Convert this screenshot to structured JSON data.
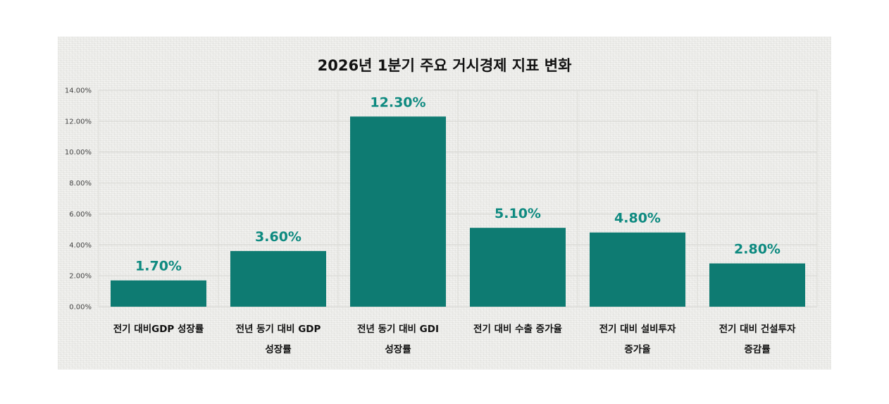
{
  "chart_data": {
    "type": "bar",
    "title": "2026년 1분기 주요 거시경제 지표 변화",
    "categories": [
      [
        "전기 대비GDP 성장률"
      ],
      [
        "전년 동기 대비 GDP",
        "성장률"
      ],
      [
        "전년 동기 대비 GDI",
        "성장률"
      ],
      [
        "전기 대비 수출 증가율"
      ],
      [
        "전기 대비 설비투자",
        "증가율"
      ],
      [
        "전기 대비 건설투자",
        "증감률"
      ]
    ],
    "values": [
      1.7,
      3.6,
      12.3,
      5.1,
      4.8,
      2.8
    ],
    "data_labels": [
      "1.70%",
      "3.60%",
      "12.30%",
      "5.10%",
      "4.80%",
      "2.80%"
    ],
    "ylim": [
      0,
      14
    ],
    "y_ticks": [
      0,
      2,
      4,
      6,
      8,
      10,
      12,
      14
    ],
    "y_tick_labels": [
      "0.00%",
      "2.00%",
      "4.00%",
      "6.00%",
      "8.00%",
      "10.00%",
      "12.00%",
      "14.00%"
    ],
    "xlabel": "",
    "ylabel": "",
    "grid": true,
    "legend": "none",
    "colors": {
      "bar": "#0e7b72",
      "label": "#0e8a80"
    }
  }
}
